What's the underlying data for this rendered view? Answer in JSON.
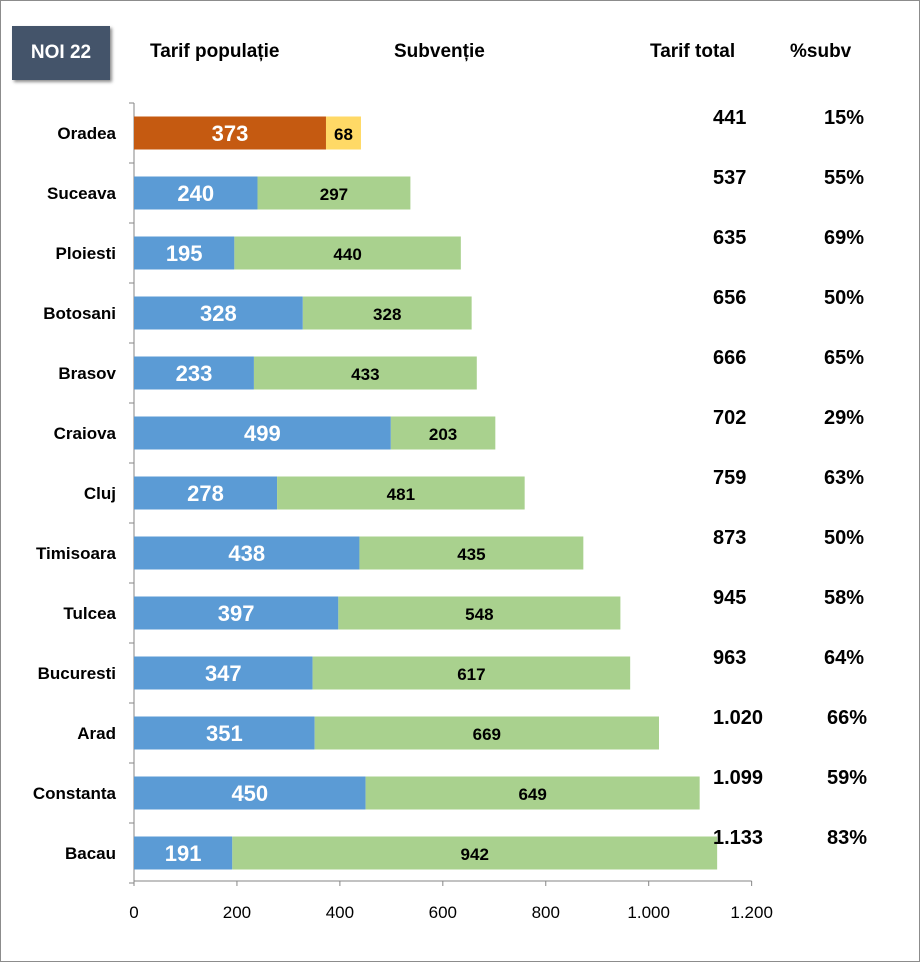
{
  "badge": "NOI 22",
  "headers": {
    "tarif_populatie": "Tarif populație",
    "subventie": "Subvenție",
    "tarif_total": "Tarif total",
    "subv_pct": "%subv"
  },
  "colors": {
    "populatie": "#5b9bd5",
    "subventie": "#a9d18e",
    "highlight_populatie": "#c55a11",
    "highlight_subventie": "#ffd966",
    "badge": "#44546a"
  },
  "chart_data": {
    "type": "bar",
    "orientation": "horizontal",
    "stacked": true,
    "categories": [
      "Oradea",
      "Suceava",
      "Ploiesti",
      "Botosani",
      "Brasov",
      "Craiova",
      "Cluj",
      "Timisoara",
      "Tulcea",
      "Bucuresti",
      "Arad",
      "Constanta",
      "Bacau"
    ],
    "series": [
      {
        "name": "Tarif populație",
        "values": [
          373,
          240,
          195,
          328,
          233,
          499,
          278,
          438,
          397,
          347,
          351,
          450,
          191
        ]
      },
      {
        "name": "Subvenție",
        "values": [
          68,
          297,
          440,
          328,
          433,
          203,
          481,
          435,
          548,
          617,
          669,
          649,
          942
        ]
      }
    ],
    "highlighted_category": "Oradea",
    "xlim": [
      0,
      1200
    ],
    "xticks": [
      "0",
      "200",
      "400",
      "600",
      "800",
      "1.000",
      "1.200"
    ],
    "grid": false,
    "legend": "none"
  },
  "rows": [
    {
      "total": "441",
      "pct": "15%"
    },
    {
      "total": "537",
      "pct": "55%"
    },
    {
      "total": "635",
      "pct": "69%"
    },
    {
      "total": "656",
      "pct": "50%"
    },
    {
      "total": "666",
      "pct": "65%"
    },
    {
      "total": "702",
      "pct": "29%"
    },
    {
      "total": "759",
      "pct": "63%"
    },
    {
      "total": "873",
      "pct": "50%"
    },
    {
      "total": "945",
      "pct": "58%"
    },
    {
      "total": "963",
      "pct": "64%"
    },
    {
      "total": "1.020",
      "pct": "66%"
    },
    {
      "total": "1.099",
      "pct": "59%"
    },
    {
      "total": "1.133",
      "pct": "83%"
    }
  ]
}
